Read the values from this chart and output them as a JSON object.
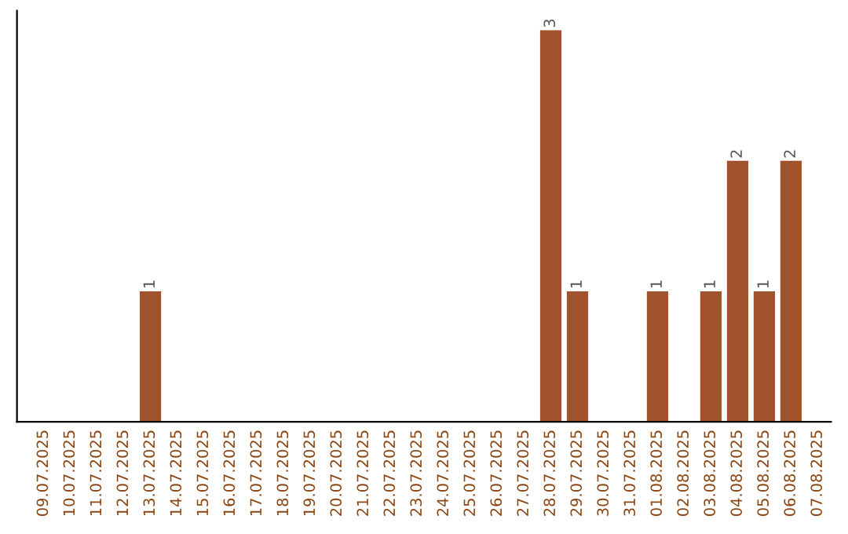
{
  "chart_data": {
    "type": "bar",
    "categories": [
      "09.07.2025",
      "10.07.2025",
      "11.07.2025",
      "12.07.2025",
      "13.07.2025",
      "14.07.2025",
      "15.07.2025",
      "16.07.2025",
      "17.07.2025",
      "18.07.2025",
      "19.07.2025",
      "20.07.2025",
      "21.07.2025",
      "22.07.2025",
      "23.07.2025",
      "24.07.2025",
      "25.07.2025",
      "26.07.2025",
      "27.07.2025",
      "28.07.2025",
      "29.07.2025",
      "30.07.2025",
      "31.07.2025",
      "01.08.2025",
      "02.08.2025",
      "03.08.2025",
      "04.08.2025",
      "05.08.2025",
      "06.08.2025",
      "07.08.2025"
    ],
    "values": [
      0,
      0,
      0,
      0,
      1,
      0,
      0,
      0,
      0,
      0,
      0,
      0,
      0,
      0,
      0,
      0,
      0,
      0,
      0,
      3,
      1,
      0,
      0,
      1,
      0,
      1,
      2,
      1,
      2,
      0
    ],
    "color": "#a0522d",
    "value_labels": [
      null,
      null,
      null,
      null,
      "1",
      null,
      null,
      null,
      null,
      null,
      null,
      null,
      null,
      null,
      null,
      null,
      null,
      null,
      null,
      "3",
      "1",
      null,
      null,
      "1",
      null,
      "1",
      "2",
      "1",
      "2",
      null
    ],
    "tick_labels": "x",
    "grid": false,
    "legend": false
  }
}
